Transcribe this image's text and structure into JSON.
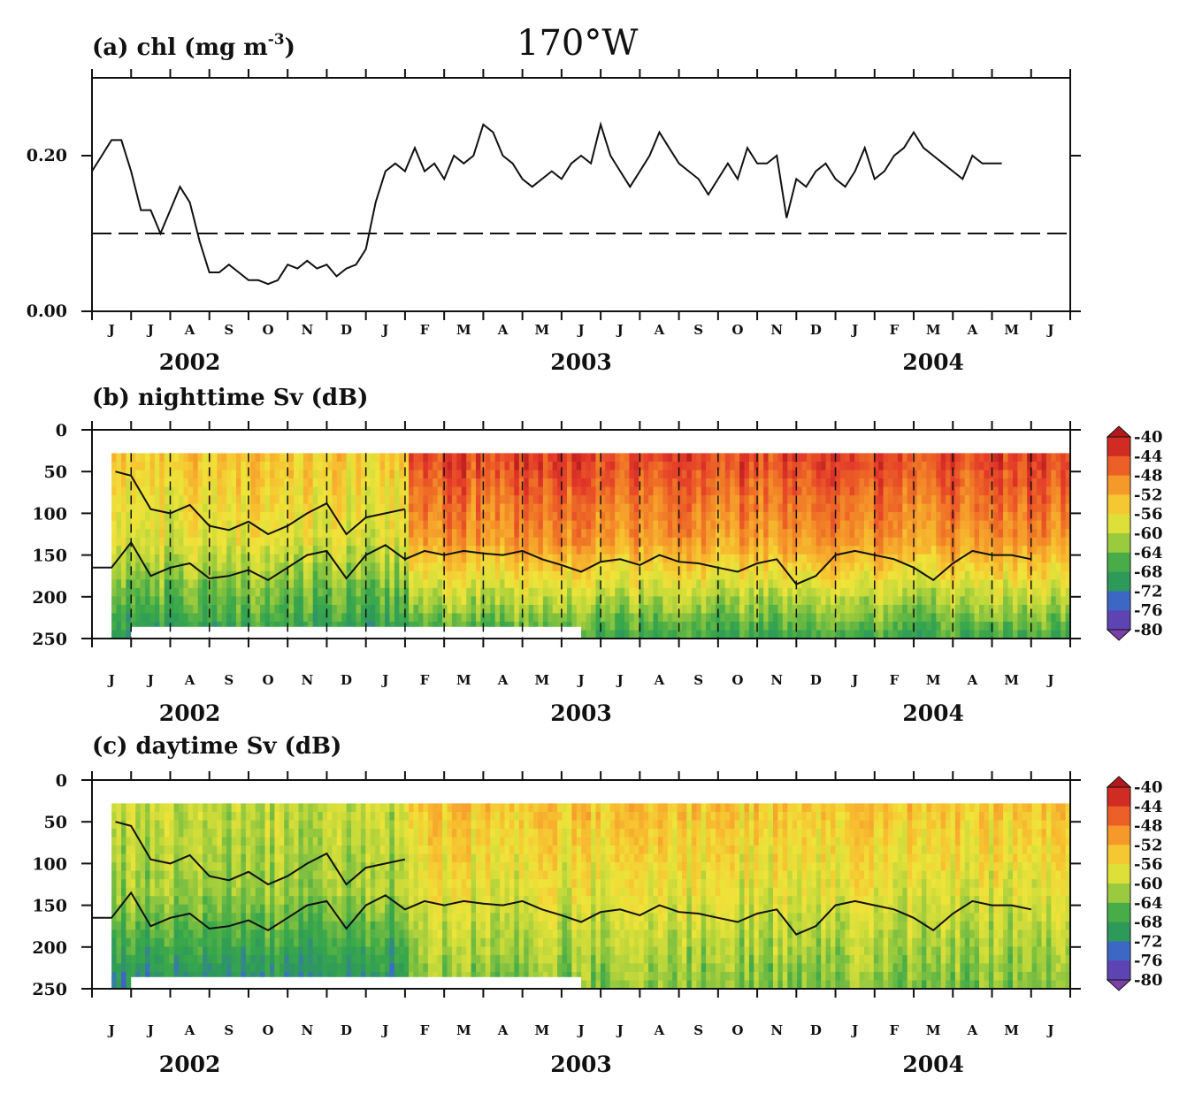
{
  "figure": {
    "main_title": "170°W"
  },
  "months": [
    "J",
    "J",
    "A",
    "S",
    "O",
    "N",
    "D",
    "J",
    "F",
    "M",
    "A",
    "M",
    "J",
    "J",
    "A",
    "S",
    "O",
    "N",
    "D",
    "J",
    "F",
    "M",
    "A",
    "M",
    "J"
  ],
  "years": [
    "2002",
    "2003",
    "2004"
  ],
  "colors": {
    "axis": "#111111",
    "line": "#111111",
    "colormap": [
      "#7b3fa8",
      "#4b45b8",
      "#3a6fc8",
      "#2e9a5a",
      "#3aa84a",
      "#7ec040",
      "#c4d93a",
      "#efe43a",
      "#f7c030",
      "#f59a2a",
      "#ee6a26",
      "#e3382a",
      "#b3191c"
    ]
  },
  "chart_data": [
    {
      "id": "a",
      "type": "line",
      "title": "(a) chl (mg m",
      "title_sup": "-3",
      "title_tail": ")",
      "ylabel": "",
      "xlabel": "",
      "ylim": [
        0.0,
        0.3
      ],
      "yticks": [
        "0.20",
        "0.00"
      ],
      "ytick_values": [
        0.2,
        0.0
      ],
      "reference_line": 0.1,
      "x_range_months": [
        0,
        25
      ],
      "series": [
        {
          "values": [
            [
              0.0,
              0.18
            ],
            [
              0.25,
              0.2
            ],
            [
              0.5,
              0.22
            ],
            [
              0.75,
              0.22
            ],
            [
              1.0,
              0.18
            ],
            [
              1.25,
              0.13
            ],
            [
              1.5,
              0.13
            ],
            [
              1.75,
              0.1
            ],
            [
              2.0,
              0.13
            ],
            [
              2.25,
              0.16
            ],
            [
              2.5,
              0.14
            ],
            [
              2.75,
              0.09
            ],
            [
              3.0,
              0.05
            ],
            [
              3.25,
              0.05
            ],
            [
              3.5,
              0.06
            ],
            [
              3.75,
              0.05
            ],
            [
              4.0,
              0.04
            ],
            [
              4.25,
              0.04
            ],
            [
              4.5,
              0.035
            ],
            [
              4.75,
              0.04
            ],
            [
              5.0,
              0.06
            ],
            [
              5.25,
              0.055
            ],
            [
              5.5,
              0.065
            ],
            [
              5.75,
              0.055
            ],
            [
              6.0,
              0.06
            ],
            [
              6.25,
              0.045
            ],
            [
              6.5,
              0.055
            ],
            [
              6.75,
              0.06
            ],
            [
              7.0,
              0.08
            ],
            [
              7.25,
              0.14
            ],
            [
              7.5,
              0.18
            ],
            [
              7.75,
              0.19
            ],
            [
              8.0,
              0.18
            ],
            [
              8.25,
              0.21
            ],
            [
              8.5,
              0.18
            ],
            [
              8.75,
              0.19
            ],
            [
              9.0,
              0.17
            ],
            [
              9.25,
              0.2
            ],
            [
              9.5,
              0.19
            ],
            [
              9.75,
              0.2
            ],
            [
              10.0,
              0.24
            ],
            [
              10.25,
              0.23
            ],
            [
              10.5,
              0.2
            ],
            [
              10.75,
              0.19
            ],
            [
              11.0,
              0.17
            ],
            [
              11.25,
              0.16
            ],
            [
              11.5,
              0.17
            ],
            [
              11.75,
              0.18
            ],
            [
              12.0,
              0.17
            ],
            [
              12.25,
              0.19
            ],
            [
              12.5,
              0.2
            ],
            [
              12.75,
              0.19
            ],
            [
              13.0,
              0.24
            ],
            [
              13.25,
              0.2
            ],
            [
              13.5,
              0.18
            ],
            [
              13.75,
              0.16
            ],
            [
              14.0,
              0.18
            ],
            [
              14.25,
              0.2
            ],
            [
              14.5,
              0.23
            ],
            [
              14.75,
              0.21
            ],
            [
              15.0,
              0.19
            ],
            [
              15.25,
              0.18
            ],
            [
              15.5,
              0.17
            ],
            [
              15.75,
              0.15
            ],
            [
              16.0,
              0.17
            ],
            [
              16.25,
              0.19
            ],
            [
              16.5,
              0.17
            ],
            [
              16.75,
              0.21
            ],
            [
              17.0,
              0.19
            ],
            [
              17.25,
              0.19
            ],
            [
              17.5,
              0.2
            ],
            [
              17.75,
              0.12
            ],
            [
              18.0,
              0.17
            ],
            [
              18.25,
              0.16
            ],
            [
              18.5,
              0.18
            ],
            [
              18.75,
              0.19
            ],
            [
              19.0,
              0.17
            ],
            [
              19.25,
              0.16
            ],
            [
              19.5,
              0.18
            ],
            [
              19.75,
              0.21
            ],
            [
              20.0,
              0.17
            ],
            [
              20.25,
              0.18
            ],
            [
              20.5,
              0.2
            ],
            [
              20.75,
              0.21
            ],
            [
              21.0,
              0.23
            ],
            [
              21.25,
              0.21
            ],
            [
              21.5,
              0.2
            ],
            [
              21.75,
              0.19
            ],
            [
              22.0,
              0.18
            ],
            [
              22.25,
              0.17
            ],
            [
              22.5,
              0.2
            ],
            [
              22.75,
              0.19
            ],
            [
              23.0,
              0.19
            ],
            [
              23.25,
              0.19
            ]
          ]
        }
      ]
    },
    {
      "id": "b",
      "type": "heatmap",
      "title": "(b) nighttime Sv (dB)",
      "ylabel": "",
      "xlabel": "",
      "ylim": [
        250,
        0
      ],
      "yticks": [
        "0",
        "50",
        "100",
        "150",
        "200",
        "250"
      ],
      "ytick_values": [
        0,
        50,
        100,
        150,
        200,
        250
      ],
      "colorbar": [
        "-40",
        "-44",
        "-48",
        "-52",
        "-56",
        "-60",
        "-64",
        "-68",
        "-72",
        "-76",
        "-80"
      ],
      "colorbar_values": [
        -40,
        -44,
        -48,
        -52,
        -56,
        -60,
        -64,
        -68,
        -72,
        -76,
        -80
      ],
      "x_range_months": [
        0,
        25
      ],
      "dashed_month_lines": true,
      "shallow_period_months": [
        0.5,
        8.0
      ],
      "regimes": [
        {
          "from": 0.5,
          "to": 8.0,
          "surface_sv": -54,
          "mid_sv": -58,
          "deep_sv": -70
        },
        {
          "from": 8.0,
          "to": 25.0,
          "surface_sv": -44,
          "mid_sv": -50,
          "deep_sv": -68
        }
      ],
      "isolines": [
        {
          "name": "upper",
          "values": [
            [
              0.6,
              50
            ],
            [
              1.0,
              55
            ],
            [
              1.5,
              95
            ],
            [
              2.0,
              100
            ],
            [
              2.5,
              90
            ],
            [
              3.0,
              115
            ],
            [
              3.5,
              120
            ],
            [
              4.0,
              110
            ],
            [
              4.5,
              125
            ],
            [
              5.0,
              115
            ],
            [
              5.5,
              100
            ],
            [
              6.0,
              88
            ],
            [
              6.5,
              125
            ],
            [
              7.0,
              105
            ],
            [
              7.5,
              100
            ],
            [
              8.0,
              95
            ]
          ]
        },
        {
          "name": "lower",
          "values": [
            [
              0.0,
              165
            ],
            [
              0.5,
              165
            ],
            [
              1.0,
              135
            ],
            [
              1.5,
              175
            ],
            [
              2.0,
              165
            ],
            [
              2.5,
              160
            ],
            [
              3.0,
              178
            ],
            [
              3.5,
              175
            ],
            [
              4.0,
              168
            ],
            [
              4.5,
              180
            ],
            [
              5.0,
              165
            ],
            [
              5.5,
              150
            ],
            [
              6.0,
              145
            ],
            [
              6.5,
              178
            ],
            [
              7.0,
              150
            ],
            [
              7.5,
              138
            ],
            [
              8.0,
              155
            ],
            [
              8.5,
              145
            ],
            [
              9.0,
              150
            ],
            [
              9.5,
              145
            ],
            [
              10.0,
              148
            ],
            [
              10.5,
              150
            ],
            [
              11.0,
              145
            ],
            [
              11.5,
              155
            ],
            [
              12.0,
              162
            ],
            [
              12.5,
              170
            ],
            [
              13.0,
              158
            ],
            [
              13.5,
              155
            ],
            [
              14.0,
              162
            ],
            [
              14.5,
              150
            ],
            [
              15.0,
              158
            ],
            [
              15.5,
              160
            ],
            [
              16.0,
              165
            ],
            [
              16.5,
              170
            ],
            [
              17.0,
              160
            ],
            [
              17.5,
              155
            ],
            [
              18.0,
              185
            ],
            [
              18.5,
              175
            ],
            [
              19.0,
              150
            ],
            [
              19.5,
              145
            ],
            [
              20.0,
              150
            ],
            [
              20.5,
              155
            ],
            [
              21.0,
              165
            ],
            [
              21.5,
              180
            ],
            [
              22.0,
              160
            ],
            [
              22.5,
              145
            ],
            [
              23.0,
              150
            ],
            [
              23.5,
              150
            ],
            [
              24.0,
              155
            ]
          ]
        }
      ]
    },
    {
      "id": "c",
      "type": "heatmap",
      "title": "(c) daytime Sv (dB)",
      "ylabel": "",
      "xlabel": "",
      "ylim": [
        250,
        0
      ],
      "yticks": [
        "0",
        "50",
        "100",
        "150",
        "200",
        "250"
      ],
      "ytick_values": [
        0,
        50,
        100,
        150,
        200,
        250
      ],
      "colorbar": [
        "-40",
        "-44",
        "-48",
        "-52",
        "-56",
        "-60",
        "-64",
        "-68",
        "-72",
        "-76",
        "-80"
      ],
      "colorbar_values": [
        -40,
        -44,
        -48,
        -52,
        -56,
        -60,
        -64,
        -68,
        -72,
        -76,
        -80
      ],
      "x_range_months": [
        0,
        25
      ],
      "dashed_month_lines": false,
      "shallow_period_months": [
        0.5,
        8.0
      ],
      "regimes": [
        {
          "from": 0.5,
          "to": 8.0,
          "surface_sv": -60,
          "mid_sv": -62,
          "deep_sv": -72
        },
        {
          "from": 8.0,
          "to": 25.0,
          "surface_sv": -54,
          "mid_sv": -58,
          "deep_sv": -64
        }
      ],
      "isolines": [
        {
          "name": "upper",
          "values": [
            [
              0.6,
              50
            ],
            [
              1.0,
              55
            ],
            [
              1.5,
              95
            ],
            [
              2.0,
              100
            ],
            [
              2.5,
              90
            ],
            [
              3.0,
              115
            ],
            [
              3.5,
              120
            ],
            [
              4.0,
              110
            ],
            [
              4.5,
              125
            ],
            [
              5.0,
              115
            ],
            [
              5.5,
              100
            ],
            [
              6.0,
              88
            ],
            [
              6.5,
              125
            ],
            [
              7.0,
              105
            ],
            [
              7.5,
              100
            ],
            [
              8.0,
              95
            ]
          ]
        },
        {
          "name": "lower",
          "values": [
            [
              0.0,
              165
            ],
            [
              0.5,
              165
            ],
            [
              1.0,
              135
            ],
            [
              1.5,
              175
            ],
            [
              2.0,
              165
            ],
            [
              2.5,
              160
            ],
            [
              3.0,
              178
            ],
            [
              3.5,
              175
            ],
            [
              4.0,
              168
            ],
            [
              4.5,
              180
            ],
            [
              5.0,
              165
            ],
            [
              5.5,
              150
            ],
            [
              6.0,
              145
            ],
            [
              6.5,
              178
            ],
            [
              7.0,
              150
            ],
            [
              7.5,
              138
            ],
            [
              8.0,
              155
            ],
            [
              8.5,
              145
            ],
            [
              9.0,
              150
            ],
            [
              9.5,
              145
            ],
            [
              10.0,
              148
            ],
            [
              10.5,
              150
            ],
            [
              11.0,
              145
            ],
            [
              11.5,
              155
            ],
            [
              12.0,
              162
            ],
            [
              12.5,
              170
            ],
            [
              13.0,
              158
            ],
            [
              13.5,
              155
            ],
            [
              14.0,
              162
            ],
            [
              14.5,
              150
            ],
            [
              15.0,
              158
            ],
            [
              15.5,
              160
            ],
            [
              16.0,
              165
            ],
            [
              16.5,
              170
            ],
            [
              17.0,
              160
            ],
            [
              17.5,
              155
            ],
            [
              18.0,
              185
            ],
            [
              18.5,
              175
            ],
            [
              19.0,
              150
            ],
            [
              19.5,
              145
            ],
            [
              20.0,
              150
            ],
            [
              20.5,
              155
            ],
            [
              21.0,
              165
            ],
            [
              21.5,
              180
            ],
            [
              22.0,
              160
            ],
            [
              22.5,
              145
            ],
            [
              23.0,
              150
            ],
            [
              23.5,
              150
            ],
            [
              24.0,
              155
            ]
          ]
        }
      ]
    }
  ]
}
